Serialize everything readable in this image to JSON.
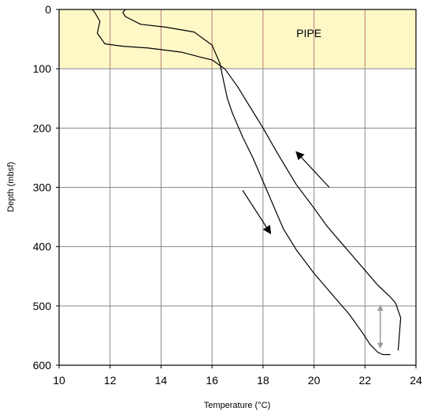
{
  "chart_data": {
    "type": "line",
    "title": "",
    "xlabel": "Temperature (°C)",
    "ylabel": "Depth (mbsf)",
    "xlim": [
      10,
      24
    ],
    "ylim": [
      0,
      600
    ],
    "y_inverted": true,
    "x_ticks": [
      10,
      12,
      14,
      16,
      18,
      20,
      22,
      24
    ],
    "y_ticks": [
      0,
      100,
      200,
      300,
      400,
      500,
      600
    ],
    "grid": true,
    "legend": "none",
    "colors": {
      "pipe_band": "#fdf8c6",
      "line": "#000000",
      "grid": "#888888",
      "pipe_grid": "#c07a7a",
      "depth_range_arrow": "#999999"
    },
    "shaded_regions": [
      {
        "label": "PIPE",
        "y_from": 0,
        "y_to": 100
      }
    ],
    "series": [
      {
        "direction": "downgoing",
        "x": [
          12.6,
          12.5,
          12.6,
          13.2,
          14.2,
          15.3,
          16.0,
          16.3,
          16.4,
          16.6,
          16.8,
          17.2,
          17.6,
          18.0,
          18.4,
          18.8,
          19.3,
          20.0,
          20.8,
          21.4,
          21.9,
          22.2,
          22.5,
          22.7,
          23.0
        ],
        "y": [
          0,
          5,
          12,
          25,
          30,
          38,
          60,
          90,
          110,
          150,
          175,
          215,
          250,
          290,
          330,
          370,
          405,
          445,
          485,
          515,
          545,
          565,
          578,
          582,
          582
        ]
      },
      {
        "direction": "upgoing",
        "x": [
          23.3,
          23.4,
          23.2,
          23.0,
          22.5,
          22.0,
          21.5,
          21.0,
          20.5,
          20.0,
          19.3,
          18.6,
          18.0,
          17.5,
          17.0,
          16.5,
          16.0,
          15.5,
          14.8,
          13.5,
          12.5,
          11.8,
          11.5,
          11.6,
          11.4,
          11.3
        ],
        "y": [
          575,
          520,
          495,
          485,
          465,
          440,
          415,
          390,
          365,
          335,
          295,
          245,
          200,
          165,
          130,
          100,
          85,
          80,
          72,
          65,
          62,
          58,
          40,
          20,
          5,
          0
        ]
      }
    ],
    "annotations": [
      {
        "text": "PIPE",
        "x": 19.8,
        "y": 40
      },
      {
        "type": "arrow",
        "meaning": "downgoing",
        "from": [
          17.2,
          305
        ],
        "to": [
          18.3,
          378
        ]
      },
      {
        "type": "arrow",
        "meaning": "upgoing",
        "from": [
          20.6,
          300
        ],
        "to": [
          19.3,
          240
        ]
      },
      {
        "type": "double-arrow",
        "meaning": "depth range",
        "x": 22.6,
        "y_from": 500,
        "y_to": 570
      }
    ]
  }
}
